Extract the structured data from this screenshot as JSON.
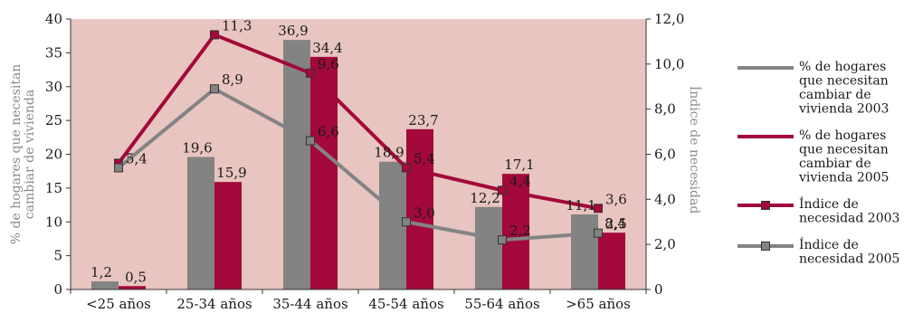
{
  "colors": {
    "plot_bg": "#e8c5c0",
    "gray": "#838383",
    "red": "#a3093a",
    "gridline": "#ffffff"
  },
  "chart_data": {
    "type": "bar",
    "title": "",
    "categories": [
      "<25 años",
      "25-34 años",
      "35-44 años",
      "45-54 años",
      "55-64 años",
      ">65 años"
    ],
    "ylabel": "% de hogares que necesitan cambiar de vivienda",
    "ylim": [
      0,
      40
    ],
    "yticks": [
      "0",
      "5",
      "10",
      "15",
      "20",
      "25",
      "30",
      "35",
      "40"
    ],
    "y2label": "Índice de necesidad",
    "y2lim": [
      0,
      12
    ],
    "y2ticks": [
      "0",
      "2,0",
      "4,0",
      "6,0",
      "8,0",
      "10,0",
      "12,0"
    ],
    "grid": false,
    "legend_position": "right",
    "series": [
      {
        "name": "% de hogares que necesitan cambiar de vivienda 2003",
        "legend_lines": [
          "% de hogares",
          "que necesitan",
          "cambiar de",
          "vivienda 2003"
        ],
        "type": "bar",
        "axis": "left",
        "color": "#838383",
        "values": [
          1.2,
          19.6,
          36.9,
          18.9,
          12.2,
          11.1
        ],
        "labels": [
          "1,2",
          "19,6",
          "36,9",
          "18,9",
          "12,2",
          "11,1"
        ]
      },
      {
        "name": "% de hogares que necesitan cambiar de vivienda 2005",
        "legend_lines": [
          "% de hogares",
          "que necesitan",
          "cambiar de",
          "vivienda 2005"
        ],
        "type": "bar",
        "axis": "left",
        "color": "#a3093a",
        "values": [
          0.5,
          15.9,
          34.4,
          23.7,
          17.1,
          8.4
        ],
        "labels": [
          "0,5",
          "15,9",
          "34,4",
          "23,7",
          "17,1",
          "8,4"
        ]
      },
      {
        "name": "Índice de necesidad 2003",
        "legend_lines": [
          "Índice de",
          "necesidad 2003"
        ],
        "type": "line",
        "axis": "right",
        "color": "#a3093a",
        "values": [
          5.6,
          11.3,
          9.6,
          5.4,
          4.4,
          3.6
        ],
        "labels": [
          "",
          "11,3",
          "9,6",
          "5,4",
          "4,4",
          "3,6"
        ]
      },
      {
        "name": "Índice de necesidad 2005",
        "legend_lines": [
          "Índice de",
          "necesidad 2005"
        ],
        "type": "line",
        "axis": "right",
        "color": "#838383",
        "values": [
          5.4,
          8.9,
          6.6,
          3.0,
          2.2,
          2.5
        ],
        "labels": [
          "5,4",
          "8,9",
          "6,6",
          "3,0",
          "2,2",
          "2,5"
        ]
      }
    ]
  }
}
